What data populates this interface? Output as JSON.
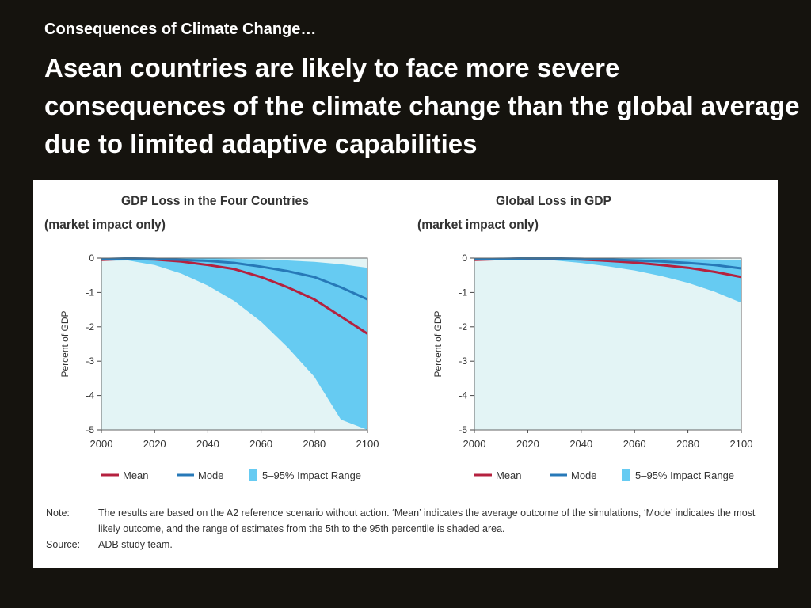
{
  "slide": {
    "kicker": "Consequences of Climate Change…",
    "headline": "Asean countries are likely to face more severe consequences of the climate change than the global average due to limited adaptive capabilities"
  },
  "colors": {
    "background": "#15130e",
    "mean": "#b5213f",
    "mode": "#2779b8",
    "range": "#66cbf2",
    "plot_bg": "#e3f4f5"
  },
  "note": {
    "note_label": "Note:",
    "note_text": "The results are based on the A2 reference scenario without action. ‘Mean’ indicates the average outcome of the simulations, ‘Mode’ indicates the most likely outcome, and the range of estimates from the 5th to the 95th percentile is shaded area.",
    "source_label": "Source:",
    "source_text": "ADB study team."
  },
  "chart_data": [
    {
      "type": "area",
      "title": "GDP Loss in the Four Countries",
      "subtitle": "(market impact only)",
      "ylabel": "Percent of GDP",
      "xlabel": "",
      "xlim": [
        2000,
        2100
      ],
      "ylim": [
        -5,
        0
      ],
      "x_ticks": [
        2000,
        2020,
        2040,
        2060,
        2080,
        2100
      ],
      "y_ticks": [
        0,
        -1,
        -2,
        -3,
        -4,
        -5
      ],
      "legend": [
        "Mean",
        "Mode",
        "5–95% Impact Range"
      ],
      "legend_position": "bottom",
      "x": [
        2000,
        2010,
        2020,
        2030,
        2040,
        2050,
        2060,
        2070,
        2080,
        2090,
        2100
      ],
      "series": [
        {
          "name": "Mean",
          "values": [
            -0.05,
            -0.02,
            -0.04,
            -0.1,
            -0.2,
            -0.32,
            -0.55,
            -0.85,
            -1.2,
            -1.7,
            -2.2
          ]
        },
        {
          "name": "Mode",
          "values": [
            -0.03,
            -0.01,
            -0.02,
            -0.05,
            -0.08,
            -0.14,
            -0.25,
            -0.38,
            -0.55,
            -0.85,
            -1.2
          ]
        },
        {
          "name": "5–95% Impact Range",
          "upper": [
            0,
            0,
            0,
            0,
            -0.01,
            -0.02,
            -0.04,
            -0.07,
            -0.11,
            -0.18,
            -0.28
          ],
          "lower": [
            -0.08,
            -0.07,
            -0.2,
            -0.45,
            -0.8,
            -1.25,
            -1.85,
            -2.6,
            -3.45,
            -4.7,
            -5
          ]
        }
      ]
    },
    {
      "type": "area",
      "title": "Global Loss in GDP",
      "subtitle": "(market impact only)",
      "ylabel": "Percent of GDP",
      "xlabel": "",
      "xlim": [
        2000,
        2100
      ],
      "ylim": [
        -5,
        0
      ],
      "x_ticks": [
        2000,
        2020,
        2040,
        2060,
        2080,
        2100
      ],
      "y_ticks": [
        0,
        -1,
        -2,
        -3,
        -4,
        -5
      ],
      "legend": [
        "Mean",
        "Mode",
        "5–95% Impact Range"
      ],
      "legend_position": "bottom",
      "x": [
        2000,
        2010,
        2020,
        2030,
        2040,
        2050,
        2060,
        2070,
        2080,
        2090,
        2100
      ],
      "series": [
        {
          "name": "Mean",
          "values": [
            -0.05,
            -0.03,
            -0.01,
            -0.02,
            -0.04,
            -0.08,
            -0.13,
            -0.2,
            -0.28,
            -0.4,
            -0.55
          ]
        },
        {
          "name": "Mode",
          "values": [
            -0.03,
            -0.02,
            -0.01,
            -0.01,
            -0.02,
            -0.04,
            -0.07,
            -0.1,
            -0.14,
            -0.2,
            -0.3
          ]
        },
        {
          "name": "5–95% Impact Range",
          "upper": [
            0,
            0,
            0,
            0,
            0,
            0,
            -0.01,
            -0.02,
            -0.03,
            -0.04,
            -0.06
          ],
          "lower": [
            -0.06,
            -0.05,
            -0.03,
            -0.07,
            -0.14,
            -0.24,
            -0.36,
            -0.52,
            -0.72,
            -0.98,
            -1.3
          ]
        }
      ]
    }
  ]
}
